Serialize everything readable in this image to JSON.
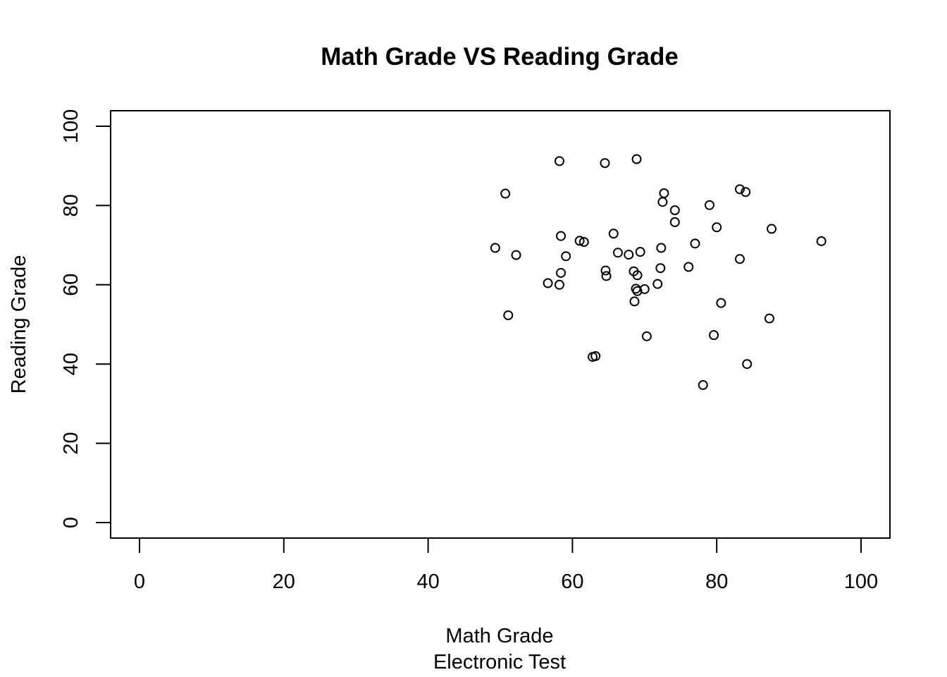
{
  "chart_data": {
    "type": "scatter",
    "title": "Math Grade VS Reading Grade",
    "xlabel": "Math Grade",
    "xlabel2": "Electronic Test",
    "ylabel": "Reading Grade",
    "xlim": [
      0,
      100
    ],
    "ylim": [
      0,
      100
    ],
    "x_ticks": [
      0,
      20,
      40,
      60,
      80,
      100
    ],
    "y_ticks": [
      0,
      20,
      40,
      60,
      80,
      100
    ],
    "grid": false,
    "series": [
      {
        "points": [
          [
            58.2,
            91.2
          ],
          [
            64.5,
            90.7
          ],
          [
            68.9,
            91.7
          ],
          [
            50.7,
            83.0
          ],
          [
            72.7,
            83.1
          ],
          [
            72.5,
            80.9
          ],
          [
            83.2,
            84.1
          ],
          [
            84.0,
            83.4
          ],
          [
            79.0,
            80.1
          ],
          [
            74.2,
            78.8
          ],
          [
            74.2,
            75.8
          ],
          [
            80.0,
            74.5
          ],
          [
            87.6,
            74.1
          ],
          [
            58.4,
            72.3
          ],
          [
            65.7,
            72.9
          ],
          [
            61.0,
            71.1
          ],
          [
            61.6,
            70.8
          ],
          [
            94.5,
            71.0
          ],
          [
            77.0,
            70.4
          ],
          [
            49.3,
            69.3
          ],
          [
            72.3,
            69.3
          ],
          [
            66.3,
            68.1
          ],
          [
            69.4,
            68.3
          ],
          [
            67.8,
            67.6
          ],
          [
            52.2,
            67.5
          ],
          [
            59.1,
            67.2
          ],
          [
            83.2,
            66.5
          ],
          [
            76.1,
            64.5
          ],
          [
            72.2,
            64.2
          ],
          [
            64.6,
            63.6
          ],
          [
            68.5,
            63.4
          ],
          [
            58.4,
            63.0
          ],
          [
            64.7,
            62.2
          ],
          [
            69.0,
            62.4
          ],
          [
            56.6,
            60.4
          ],
          [
            58.2,
            60.0
          ],
          [
            71.8,
            60.2
          ],
          [
            68.8,
            59.0
          ],
          [
            70.0,
            58.9
          ],
          [
            69.0,
            58.4
          ],
          [
            68.6,
            55.8
          ],
          [
            80.6,
            55.4
          ],
          [
            51.1,
            52.3
          ],
          [
            87.3,
            51.5
          ],
          [
            70.3,
            47.0
          ],
          [
            79.6,
            47.3
          ],
          [
            62.8,
            41.8
          ],
          [
            63.2,
            42.0
          ],
          [
            84.2,
            40.0
          ],
          [
            78.1,
            34.7
          ]
        ]
      }
    ]
  }
}
